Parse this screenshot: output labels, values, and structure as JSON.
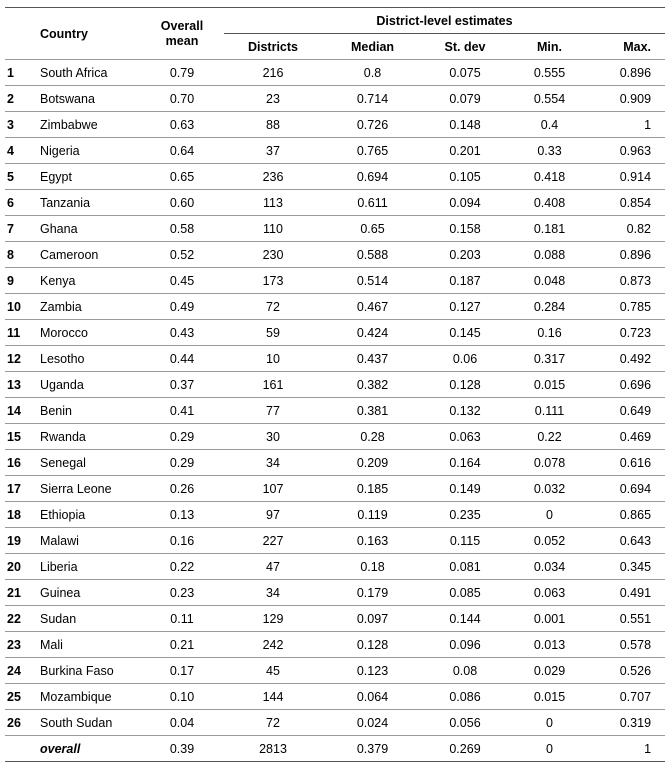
{
  "headers": {
    "country": "Country",
    "overall_mean_line1": "Overall",
    "overall_mean_line2": "mean",
    "group": "District-level estimates",
    "districts": "Districts",
    "median": "Median",
    "st_dev": "St. dev",
    "min": "Min.",
    "max": "Max."
  },
  "rows": [
    {
      "rank": "1",
      "country": "South Africa",
      "mean": "0.79",
      "districts": "216",
      "median": "0.8",
      "sd": "0.075",
      "min": "0.555",
      "max": "0.896"
    },
    {
      "rank": "2",
      "country": "Botswana",
      "mean": "0.70",
      "districts": "23",
      "median": "0.714",
      "sd": "0.079",
      "min": "0.554",
      "max": "0.909"
    },
    {
      "rank": "3",
      "country": "Zimbabwe",
      "mean": "0.63",
      "districts": "88",
      "median": "0.726",
      "sd": "0.148",
      "min": "0.4",
      "max": "1"
    },
    {
      "rank": "4",
      "country": "Nigeria",
      "mean": "0.64",
      "districts": "37",
      "median": "0.765",
      "sd": "0.201",
      "min": "0.33",
      "max": "0.963"
    },
    {
      "rank": "5",
      "country": "Egypt",
      "mean": "0.65",
      "districts": "236",
      "median": "0.694",
      "sd": "0.105",
      "min": "0.418",
      "max": "0.914"
    },
    {
      "rank": "6",
      "country": "Tanzania",
      "mean": "0.60",
      "districts": "113",
      "median": "0.611",
      "sd": "0.094",
      "min": "0.408",
      "max": "0.854"
    },
    {
      "rank": "7",
      "country": "Ghana",
      "mean": "0.58",
      "districts": "110",
      "median": "0.65",
      "sd": "0.158",
      "min": "0.181",
      "max": "0.82"
    },
    {
      "rank": "8",
      "country": "Cameroon",
      "mean": "0.52",
      "districts": "230",
      "median": "0.588",
      "sd": "0.203",
      "min": "0.088",
      "max": "0.896"
    },
    {
      "rank": "9",
      "country": "Kenya",
      "mean": "0.45",
      "districts": "173",
      "median": "0.514",
      "sd": "0.187",
      "min": "0.048",
      "max": "0.873"
    },
    {
      "rank": "10",
      "country": "Zambia",
      "mean": "0.49",
      "districts": "72",
      "median": "0.467",
      "sd": "0.127",
      "min": "0.284",
      "max": "0.785"
    },
    {
      "rank": "11",
      "country": "Morocco",
      "mean": "0.43",
      "districts": "59",
      "median": "0.424",
      "sd": "0.145",
      "min": "0.16",
      "max": "0.723"
    },
    {
      "rank": "12",
      "country": "Lesotho",
      "mean": "0.44",
      "districts": "10",
      "median": "0.437",
      "sd": "0.06",
      "min": "0.317",
      "max": "0.492"
    },
    {
      "rank": "13",
      "country": "Uganda",
      "mean": "0.37",
      "districts": "161",
      "median": "0.382",
      "sd": "0.128",
      "min": "0.015",
      "max": "0.696"
    },
    {
      "rank": "14",
      "country": "Benin",
      "mean": "0.41",
      "districts": "77",
      "median": "0.381",
      "sd": "0.132",
      "min": "0.111",
      "max": "0.649"
    },
    {
      "rank": "15",
      "country": "Rwanda",
      "mean": "0.29",
      "districts": "30",
      "median": "0.28",
      "sd": "0.063",
      "min": "0.22",
      "max": "0.469"
    },
    {
      "rank": "16",
      "country": "Senegal",
      "mean": "0.29",
      "districts": "34",
      "median": "0.209",
      "sd": "0.164",
      "min": "0.078",
      "max": "0.616"
    },
    {
      "rank": "17",
      "country": "Sierra Leone",
      "mean": "0.26",
      "districts": "107",
      "median": "0.185",
      "sd": "0.149",
      "min": "0.032",
      "max": "0.694"
    },
    {
      "rank": "18",
      "country": "Ethiopia",
      "mean": "0.13",
      "districts": "97",
      "median": "0.119",
      "sd": "0.235",
      "min": "0",
      "max": "0.865"
    },
    {
      "rank": "19",
      "country": "Malawi",
      "mean": "0.16",
      "districts": "227",
      "median": "0.163",
      "sd": "0.115",
      "min": "0.052",
      "max": "0.643"
    },
    {
      "rank": "20",
      "country": "Liberia",
      "mean": "0.22",
      "districts": "47",
      "median": "0.18",
      "sd": "0.081",
      "min": "0.034",
      "max": "0.345"
    },
    {
      "rank": "21",
      "country": "Guinea",
      "mean": "0.23",
      "districts": "34",
      "median": "0.179",
      "sd": "0.085",
      "min": "0.063",
      "max": "0.491"
    },
    {
      "rank": "22",
      "country": "Sudan",
      "mean": "0.11",
      "districts": "129",
      "median": "0.097",
      "sd": "0.144",
      "min": "0.001",
      "max": "0.551"
    },
    {
      "rank": "23",
      "country": "Mali",
      "mean": "0.21",
      "districts": "242",
      "median": "0.128",
      "sd": "0.096",
      "min": "0.013",
      "max": "0.578"
    },
    {
      "rank": "24",
      "country": "Burkina Faso",
      "mean": "0.17",
      "districts": "45",
      "median": "0.123",
      "sd": "0.08",
      "min": "0.029",
      "max": "0.526"
    },
    {
      "rank": "25",
      "country": "Mozambique",
      "mean": "0.10",
      "districts": "144",
      "median": "0.064",
      "sd": "0.086",
      "min": "0.015",
      "max": "0.707"
    },
    {
      "rank": "26",
      "country": "South Sudan",
      "mean": "0.04",
      "districts": "72",
      "median": "0.024",
      "sd": "0.056",
      "min": "0",
      "max": "0.319"
    }
  ],
  "overall": {
    "label": "overall",
    "mean": "0.39",
    "districts": "2813",
    "median": "0.379",
    "sd": "0.269",
    "min": "0",
    "max": "1"
  }
}
